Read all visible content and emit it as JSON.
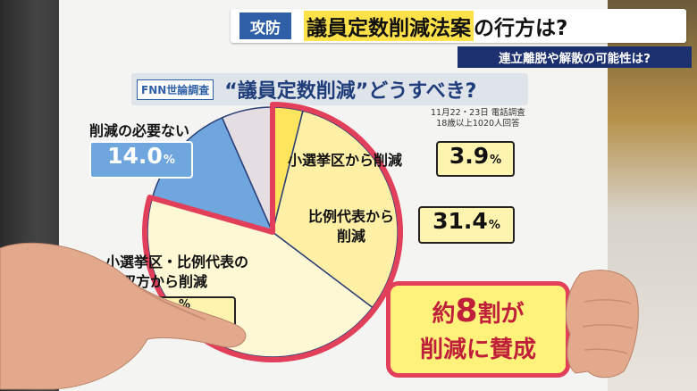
{
  "banner": {
    "tag": "攻防",
    "headline_highlight": "議員定数削減法案",
    "headline_rest": "の行方は?",
    "sub": "連立離脱や解散の可能性は?"
  },
  "question": {
    "source": "FNN世論調査",
    "title": "“議員定数削減”どうすべき?"
  },
  "survey_note": [
    "11月22・23日 電話調査",
    "18歳以上1020人回答"
  ],
  "chart_data": {
    "type": "pie",
    "title": "“議員定数削減”どうすべき?",
    "slices": [
      {
        "label": "小選挙区から削減",
        "value": 3.9,
        "display": "3.9",
        "color": "#ffe55e"
      },
      {
        "label": "比例代表から削減",
        "value": 31.4,
        "display": "31.4",
        "color": "#fff0a6"
      },
      {
        "label": "小選挙区・比例代表の双方から削減",
        "value": 44.1,
        "display": "",
        "color": "#fff8d4"
      },
      {
        "label": "削減の必要ない",
        "value": 14.0,
        "display": "14.0",
        "color": "#6fa6dd"
      },
      {
        "label": "",
        "value": 6.6,
        "display": "",
        "color": "#e4dde2"
      }
    ],
    "percent_sign": "%",
    "highlight_color": "#e2405a"
  },
  "labels": {
    "no_need": "削減の必要ない",
    "smd": "小選挙区から削減",
    "pr_line1": "比例代表から",
    "pr_line2": "削減",
    "both_line1": "小選挙区・比例代表の",
    "both_line2": "双方から削減"
  },
  "callout": {
    "l1_a": "約",
    "l1_big": "8",
    "l1_b": "割が",
    "l2": "削減に賛成"
  }
}
